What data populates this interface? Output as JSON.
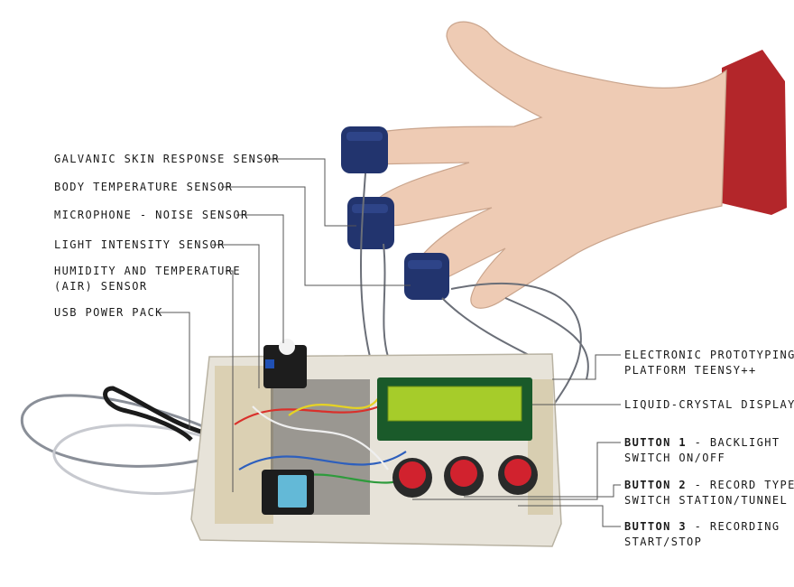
{
  "labels_left": [
    {
      "id": "gsr",
      "lines": [
        "GALVANIC SKIN RESPONSE SENSOR"
      ]
    },
    {
      "id": "body-temp",
      "lines": [
        "BODY TEMPERATURE SENSOR"
      ]
    },
    {
      "id": "mic",
      "lines": [
        "MICROPHONE - NOISE SENSOR"
      ]
    },
    {
      "id": "light",
      "lines": [
        "LIGHT INTENSITY SENSOR"
      ]
    },
    {
      "id": "humidity",
      "lines": [
        "HUMIDITY AND TEMPERATURE",
        "(AIR) SENSOR"
      ]
    },
    {
      "id": "usb",
      "lines": [
        "USB POWER PACK"
      ]
    }
  ],
  "labels_right": [
    {
      "id": "teensy",
      "lines": [
        "ELECTRONIC PROTOTYPING",
        "PLATFORM TEENSY++"
      ]
    },
    {
      "id": "lcd",
      "lines": [
        "LIQUID-CRYSTAL DISPLAY"
      ]
    }
  ],
  "buttons": [
    {
      "id": "button1",
      "name": "BUTTON 1",
      "rest": " - BACKLIGHT",
      "line2": "SWITCH ON/OFF"
    },
    {
      "id": "button2",
      "name": "BUTTON 2",
      "rest": " - RECORD TYPE",
      "line2": "SWITCH STATION/TUNNEL"
    },
    {
      "id": "button3",
      "name": "BUTTON 3",
      "rest": " - RECORDING",
      "line2": "START/STOP"
    }
  ],
  "colors": {
    "skin": "#eecbb4",
    "sleeve": "#b3262a",
    "strap": "#22346e",
    "enclosure": "#e7e3d9",
    "lcd_screen": "#a6cc2a",
    "button_red": "#d1222e",
    "leader": "#555555"
  }
}
